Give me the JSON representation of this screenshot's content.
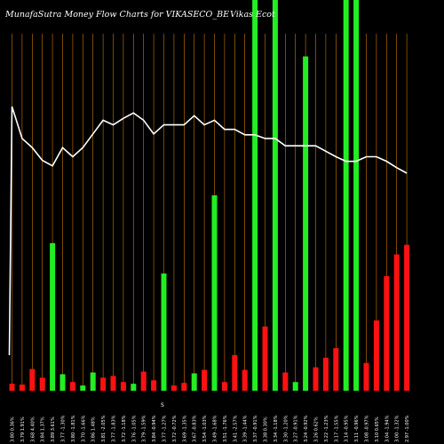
{
  "title": "MunafaSutra  Money Flow  Charts for VIKASECO_BE",
  "title_tail": "Vikas Ecot",
  "axis_marker": "S",
  "colors": {
    "background": "#000000",
    "gridline": "#cc7a00",
    "up": "#22ee22",
    "down": "#ff1111",
    "line": "#ffffff",
    "text": "#ffffff"
  },
  "chart_data": {
    "type": "bar",
    "title": "MunafaSutra  Money Flow  Charts for VIKASECO_BE",
    "x_labels": [
      "3.80 0.36%",
      "3.79 1.91%",
      "3.68 4.40%",
      "3.84 1.37%",
      "3.89 3.61%",
      "3.77 -1.30%",
      "3.80 -1.81%",
      "3.70 -1.66%",
      "3.86 1.48%",
      "3.81 -2.05%",
      "3.77 -1.83%",
      "3.72 -1.18%",
      "3.76 -1.05%",
      "3.79 -1.59%",
      "3.84 -0.94%",
      "3.77 -1.27%",
      "3.72 -0.72%",
      "3.69 -1.35%",
      "3.67 -0.83%",
      "3.54 -1.03%",
      "3.49 -1.68%",
      "3.51 -1.76%",
      "3.41 -2.57%",
      "3.39 -1.44%",
      "3.37 -0.91%",
      "3.38 0.30%",
      "3.34 -1.18%",
      "3.30 -1.20%",
      "3.27 -0.91%",
      "3.24 -0.92%",
      "3.26 0.62%",
      "3.22 -1.23%",
      "3.17 -1.55%",
      "3.14 -0.95%",
      "3.11 -0.96%",
      "3.08 -0.97%",
      "3.10 0.65%",
      "3.04 -1.94%",
      "3.00 -1.32%",
      "2.97 -1.00%"
    ],
    "series": [
      {
        "values": [
          8,
          7,
          25,
          15,
          170,
          19,
          10,
          6,
          21,
          15,
          17,
          10,
          8,
          22,
          12,
          135,
          6,
          9,
          20,
          24,
          225,
          10,
          41,
          24,
          450,
          74,
          450,
          21,
          10,
          385,
          27,
          38,
          49,
          450,
          450,
          32,
          81,
          132,
          157,
          168
        ]
      }
    ],
    "bar_colors": [
      "down",
      "down",
      "down",
      "down",
      "up",
      "up",
      "down",
      "up",
      "up",
      "down",
      "down",
      "down",
      "up",
      "down",
      "down",
      "up",
      "down",
      "down",
      "up",
      "down",
      "up",
      "down",
      "down",
      "down",
      "up",
      "down",
      "up",
      "down",
      "up",
      "up",
      "down",
      "down",
      "down",
      "up",
      "up",
      "down",
      "down",
      "down",
      "down",
      "down"
    ],
    "line": [
      185,
      150,
      140,
      126,
      120,
      140,
      130,
      140,
      155,
      170,
      165,
      172,
      178,
      170,
      155,
      165,
      165,
      165,
      175,
      165,
      170,
      160,
      160,
      154,
      154,
      150,
      150,
      142,
      142,
      142,
      142,
      136,
      130,
      125,
      125,
      130,
      130,
      125,
      118,
      112
    ],
    "ylim": [
      0,
      450
    ],
    "grid": true
  }
}
